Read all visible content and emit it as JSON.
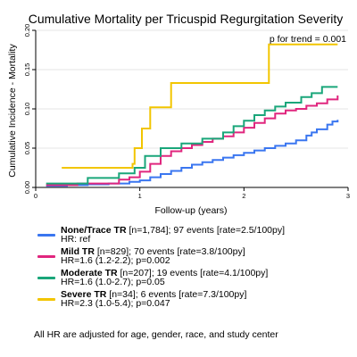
{
  "chart_data": {
    "type": "line",
    "step": true,
    "title": "Cumulative Mortality per Tricuspid Regurgitation Severity",
    "annotation": "p for trend = 0.001",
    "xlabel": "Follow-up (years)",
    "ylabel": "Cumulative Incidence - Mortality",
    "xlim": [
      0,
      3
    ],
    "ylim": [
      0,
      0.2
    ],
    "xticks": [
      0,
      1,
      2,
      3
    ],
    "xtick_labels": [
      "0",
      "1",
      "2",
      "3"
    ],
    "yticks": [
      0,
      0.05,
      0.1,
      0.15,
      0.2
    ],
    "ytick_labels": [
      "0.00",
      "0.05",
      "0.10",
      "0.15",
      "0.20"
    ],
    "grid": "horizontal",
    "series": [
      {
        "name": "None/Trace TR",
        "color": "#3a76f0",
        "points": [
          [
            0.1,
            0.002
          ],
          [
            0.3,
            0.003
          ],
          [
            0.5,
            0.004
          ],
          [
            0.7,
            0.005
          ],
          [
            0.9,
            0.007
          ],
          [
            1.0,
            0.009
          ],
          [
            1.1,
            0.013
          ],
          [
            1.2,
            0.017
          ],
          [
            1.3,
            0.021
          ],
          [
            1.4,
            0.025
          ],
          [
            1.5,
            0.029
          ],
          [
            1.6,
            0.032
          ],
          [
            1.7,
            0.035
          ],
          [
            1.8,
            0.038
          ],
          [
            1.9,
            0.041
          ],
          [
            2.0,
            0.044
          ],
          [
            2.1,
            0.047
          ],
          [
            2.2,
            0.05
          ],
          [
            2.3,
            0.053
          ],
          [
            2.4,
            0.056
          ],
          [
            2.5,
            0.06
          ],
          [
            2.6,
            0.066
          ],
          [
            2.65,
            0.07
          ],
          [
            2.7,
            0.074
          ],
          [
            2.8,
            0.08
          ],
          [
            2.85,
            0.084
          ],
          [
            2.9,
            0.086
          ]
        ]
      },
      {
        "name": "Mild TR",
        "color": "#e0267e",
        "points": [
          [
            0.1,
            0.003
          ],
          [
            0.4,
            0.005
          ],
          [
            0.8,
            0.01
          ],
          [
            0.9,
            0.013
          ],
          [
            1.0,
            0.02
          ],
          [
            1.1,
            0.03
          ],
          [
            1.2,
            0.04
          ],
          [
            1.3,
            0.046
          ],
          [
            1.4,
            0.05
          ],
          [
            1.5,
            0.054
          ],
          [
            1.6,
            0.058
          ],
          [
            1.7,
            0.062
          ],
          [
            1.8,
            0.065
          ],
          [
            1.9,
            0.07
          ],
          [
            2.0,
            0.076
          ],
          [
            2.1,
            0.082
          ],
          [
            2.2,
            0.088
          ],
          [
            2.3,
            0.094
          ],
          [
            2.4,
            0.098
          ],
          [
            2.5,
            0.1
          ],
          [
            2.6,
            0.104
          ],
          [
            2.7,
            0.107
          ],
          [
            2.8,
            0.112
          ],
          [
            2.9,
            0.117
          ]
        ]
      },
      {
        "name": "Moderate TR",
        "color": "#1aa67a",
        "points": [
          [
            0.1,
            0.005
          ],
          [
            0.5,
            0.012
          ],
          [
            0.8,
            0.018
          ],
          [
            0.95,
            0.025
          ],
          [
            1.05,
            0.04
          ],
          [
            1.2,
            0.05
          ],
          [
            1.4,
            0.056
          ],
          [
            1.6,
            0.062
          ],
          [
            1.8,
            0.07
          ],
          [
            1.9,
            0.078
          ],
          [
            2.0,
            0.085
          ],
          [
            2.1,
            0.092
          ],
          [
            2.2,
            0.098
          ],
          [
            2.3,
            0.103
          ],
          [
            2.4,
            0.108
          ],
          [
            2.55,
            0.115
          ],
          [
            2.65,
            0.12
          ],
          [
            2.75,
            0.128
          ],
          [
            2.9,
            0.128
          ]
        ]
      },
      {
        "name": "Severe TR",
        "color": "#f2c500",
        "points": [
          [
            0.25,
            0.025
          ],
          [
            0.9,
            0.025
          ],
          [
            0.93,
            0.03
          ],
          [
            0.95,
            0.05
          ],
          [
            1.02,
            0.075
          ],
          [
            1.1,
            0.102
          ],
          [
            1.3,
            0.133
          ],
          [
            2.22,
            0.133
          ],
          [
            2.24,
            0.182
          ],
          [
            2.9,
            0.182
          ]
        ]
      }
    ]
  },
  "legend": [
    {
      "color": "#3a76f0",
      "name": "None/Trace TR",
      "details": "[n=1,784]; 97 events [rate=2.5/100py]",
      "hr": "HR: ref"
    },
    {
      "color": "#e0267e",
      "name": "Mild TR",
      "details": "[n=829]; 70 events [rate=3.8/100py]",
      "hr": "HR=1.6 (1.2-2.2); p=0.002"
    },
    {
      "color": "#1aa67a",
      "name": "Moderate TR",
      "details": "[n=207]; 19 events [rate=4.1/100py]",
      "hr": "HR=1.6 (1.0-2.7); p=0.05"
    },
    {
      "color": "#f2c500",
      "name": "Severe TR",
      "details": "[n=34]; 6 events [rate=7.3/100py]",
      "hr": "HR=2.3 (1.0-5.4); p=0.047"
    }
  ],
  "footnote": "All HR are adjusted for age, gender, race, and study center"
}
